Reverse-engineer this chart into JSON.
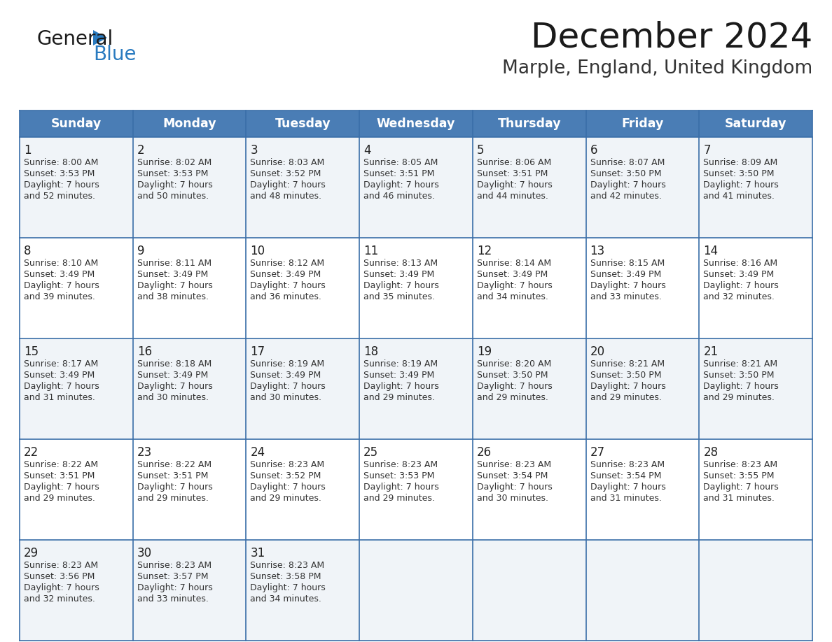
{
  "title": "December 2024",
  "subtitle": "Marple, England, United Kingdom",
  "days_of_week": [
    "Sunday",
    "Monday",
    "Tuesday",
    "Wednesday",
    "Thursday",
    "Friday",
    "Saturday"
  ],
  "header_bg": "#4a7db5",
  "header_text": "#ffffff",
  "cell_bg_light": "#f0f4f8",
  "cell_bg_white": "#ffffff",
  "border_color": "#3a6ea8",
  "day_num_color": "#222222",
  "cell_text_color": "#333333",
  "title_color": "#1a1a1a",
  "subtitle_color": "#333333",
  "calendar_data": [
    [
      {
        "day": 1,
        "sunrise": "8:00 AM",
        "sunset": "3:53 PM",
        "daylight_h": "7 hours",
        "daylight_m": "52 minutes."
      },
      {
        "day": 2,
        "sunrise": "8:02 AM",
        "sunset": "3:53 PM",
        "daylight_h": "7 hours",
        "daylight_m": "50 minutes."
      },
      {
        "day": 3,
        "sunrise": "8:03 AM",
        "sunset": "3:52 PM",
        "daylight_h": "7 hours",
        "daylight_m": "48 minutes."
      },
      {
        "day": 4,
        "sunrise": "8:05 AM",
        "sunset": "3:51 PM",
        "daylight_h": "7 hours",
        "daylight_m": "46 minutes."
      },
      {
        "day": 5,
        "sunrise": "8:06 AM",
        "sunset": "3:51 PM",
        "daylight_h": "7 hours",
        "daylight_m": "44 minutes."
      },
      {
        "day": 6,
        "sunrise": "8:07 AM",
        "sunset": "3:50 PM",
        "daylight_h": "7 hours",
        "daylight_m": "42 minutes."
      },
      {
        "day": 7,
        "sunrise": "8:09 AM",
        "sunset": "3:50 PM",
        "daylight_h": "7 hours",
        "daylight_m": "41 minutes."
      }
    ],
    [
      {
        "day": 8,
        "sunrise": "8:10 AM",
        "sunset": "3:49 PM",
        "daylight_h": "7 hours",
        "daylight_m": "39 minutes."
      },
      {
        "day": 9,
        "sunrise": "8:11 AM",
        "sunset": "3:49 PM",
        "daylight_h": "7 hours",
        "daylight_m": "38 minutes."
      },
      {
        "day": 10,
        "sunrise": "8:12 AM",
        "sunset": "3:49 PM",
        "daylight_h": "7 hours",
        "daylight_m": "36 minutes."
      },
      {
        "day": 11,
        "sunrise": "8:13 AM",
        "sunset": "3:49 PM",
        "daylight_h": "7 hours",
        "daylight_m": "35 minutes."
      },
      {
        "day": 12,
        "sunrise": "8:14 AM",
        "sunset": "3:49 PM",
        "daylight_h": "7 hours",
        "daylight_m": "34 minutes."
      },
      {
        "day": 13,
        "sunrise": "8:15 AM",
        "sunset": "3:49 PM",
        "daylight_h": "7 hours",
        "daylight_m": "33 minutes."
      },
      {
        "day": 14,
        "sunrise": "8:16 AM",
        "sunset": "3:49 PM",
        "daylight_h": "7 hours",
        "daylight_m": "32 minutes."
      }
    ],
    [
      {
        "day": 15,
        "sunrise": "8:17 AM",
        "sunset": "3:49 PM",
        "daylight_h": "7 hours",
        "daylight_m": "31 minutes."
      },
      {
        "day": 16,
        "sunrise": "8:18 AM",
        "sunset": "3:49 PM",
        "daylight_h": "7 hours",
        "daylight_m": "30 minutes."
      },
      {
        "day": 17,
        "sunrise": "8:19 AM",
        "sunset": "3:49 PM",
        "daylight_h": "7 hours",
        "daylight_m": "30 minutes."
      },
      {
        "day": 18,
        "sunrise": "8:19 AM",
        "sunset": "3:49 PM",
        "daylight_h": "7 hours",
        "daylight_m": "29 minutes."
      },
      {
        "day": 19,
        "sunrise": "8:20 AM",
        "sunset": "3:50 PM",
        "daylight_h": "7 hours",
        "daylight_m": "29 minutes."
      },
      {
        "day": 20,
        "sunrise": "8:21 AM",
        "sunset": "3:50 PM",
        "daylight_h": "7 hours",
        "daylight_m": "29 minutes."
      },
      {
        "day": 21,
        "sunrise": "8:21 AM",
        "sunset": "3:50 PM",
        "daylight_h": "7 hours",
        "daylight_m": "29 minutes."
      }
    ],
    [
      {
        "day": 22,
        "sunrise": "8:22 AM",
        "sunset": "3:51 PM",
        "daylight_h": "7 hours",
        "daylight_m": "29 minutes."
      },
      {
        "day": 23,
        "sunrise": "8:22 AM",
        "sunset": "3:51 PM",
        "daylight_h": "7 hours",
        "daylight_m": "29 minutes."
      },
      {
        "day": 24,
        "sunrise": "8:23 AM",
        "sunset": "3:52 PM",
        "daylight_h": "7 hours",
        "daylight_m": "29 minutes."
      },
      {
        "day": 25,
        "sunrise": "8:23 AM",
        "sunset": "3:53 PM",
        "daylight_h": "7 hours",
        "daylight_m": "29 minutes."
      },
      {
        "day": 26,
        "sunrise": "8:23 AM",
        "sunset": "3:54 PM",
        "daylight_h": "7 hours",
        "daylight_m": "30 minutes."
      },
      {
        "day": 27,
        "sunrise": "8:23 AM",
        "sunset": "3:54 PM",
        "daylight_h": "7 hours",
        "daylight_m": "31 minutes."
      },
      {
        "day": 28,
        "sunrise": "8:23 AM",
        "sunset": "3:55 PM",
        "daylight_h": "7 hours",
        "daylight_m": "31 minutes."
      }
    ],
    [
      {
        "day": 29,
        "sunrise": "8:23 AM",
        "sunset": "3:56 PM",
        "daylight_h": "7 hours",
        "daylight_m": "32 minutes."
      },
      {
        "day": 30,
        "sunrise": "8:23 AM",
        "sunset": "3:57 PM",
        "daylight_h": "7 hours",
        "daylight_m": "33 minutes."
      },
      {
        "day": 31,
        "sunrise": "8:23 AM",
        "sunset": "3:58 PM",
        "daylight_h": "7 hours",
        "daylight_m": "34 minutes."
      },
      null,
      null,
      null,
      null
    ]
  ],
  "logo_text_general": "General",
  "logo_text_blue": "Blue",
  "logo_color_general": "#1a1a1a",
  "logo_color_blue": "#2a7bc0",
  "logo_triangle_color": "#2a7bc0",
  "fig_width": 11.88,
  "fig_height": 9.18,
  "dpi": 100
}
